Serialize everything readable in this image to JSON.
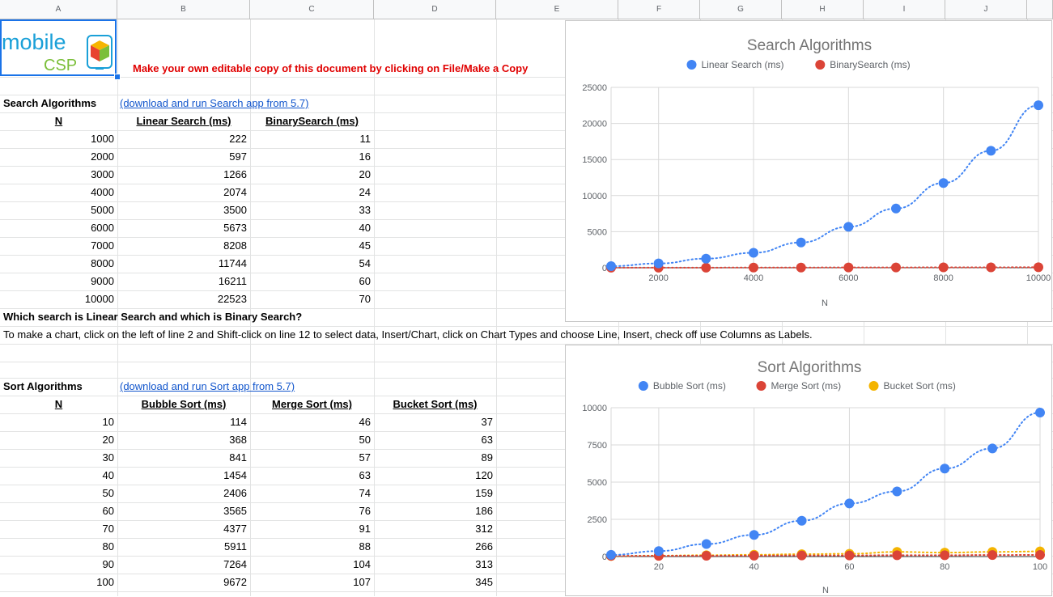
{
  "columns": [
    "A",
    "B",
    "C",
    "D",
    "E",
    "F",
    "G",
    "H",
    "I",
    "J"
  ],
  "logo": {
    "line1": "mobile",
    "line2": "CSP"
  },
  "notice": "Make your own editable copy of this document by clicking on File/Make a Copy",
  "search": {
    "title": "Search Algorithms",
    "link": "(download and run Search app from 5.7)",
    "headers": [
      "N",
      "Linear Search (ms)",
      "BinarySearch (ms)"
    ],
    "rows": [
      [
        "1000",
        "222",
        "11"
      ],
      [
        "2000",
        "597",
        "16"
      ],
      [
        "3000",
        "1266",
        "20"
      ],
      [
        "4000",
        "2074",
        "24"
      ],
      [
        "5000",
        "3500",
        "33"
      ],
      [
        "6000",
        "5673",
        "40"
      ],
      [
        "7000",
        "8208",
        "45"
      ],
      [
        "8000",
        "11744",
        "54"
      ],
      [
        "9000",
        "16211",
        "60"
      ],
      [
        "10000",
        "22523",
        "70"
      ]
    ],
    "question": "Which search is Linear Search and which is Binary Search?",
    "instructions": "To make a chart, click on the left of line 2 and Shift-click on line 12 to select data, Insert/Chart, click on Chart Types and choose Line, Insert, check off use Columns as Labels."
  },
  "sort": {
    "title": "Sort Algorithms",
    "link": "(download and run Sort app from 5.7)",
    "headers": [
      "N",
      "Bubble Sort (ms)",
      "Merge Sort (ms)",
      "Bucket Sort (ms)"
    ],
    "rows": [
      [
        "10",
        "114",
        "46",
        "37"
      ],
      [
        "20",
        "368",
        "50",
        "63"
      ],
      [
        "30",
        "841",
        "57",
        "89"
      ],
      [
        "40",
        "1454",
        "63",
        "120"
      ],
      [
        "50",
        "2406",
        "74",
        "159"
      ],
      [
        "60",
        "3565",
        "76",
        "186"
      ],
      [
        "70",
        "4377",
        "91",
        "312"
      ],
      [
        "80",
        "5911",
        "88",
        "266"
      ],
      [
        "90",
        "7264",
        "104",
        "313"
      ],
      [
        "100",
        "9672",
        "107",
        "345"
      ]
    ]
  },
  "chart_data": [
    {
      "type": "scatter",
      "title": "Search Algorithms",
      "xlabel": "N",
      "ylabel": "",
      "x": [
        1000,
        2000,
        3000,
        4000,
        5000,
        6000,
        7000,
        8000,
        9000,
        10000
      ],
      "xlim": [
        1000,
        10000
      ],
      "ylim": [
        0,
        25000
      ],
      "xticks": [
        2000,
        4000,
        6000,
        8000,
        10000
      ],
      "yticks": [
        0,
        5000,
        10000,
        15000,
        20000,
        25000
      ],
      "legend_position": "top",
      "grid": true,
      "series": [
        {
          "name": "Linear Search (ms)",
          "color": "#4285f4",
          "values": [
            222,
            597,
            1266,
            2074,
            3500,
            5673,
            8208,
            11744,
            16211,
            22523
          ]
        },
        {
          "name": "BinarySearch (ms)",
          "color": "#db4437",
          "values": [
            11,
            16,
            20,
            24,
            33,
            40,
            45,
            54,
            60,
            70
          ]
        }
      ]
    },
    {
      "type": "scatter",
      "title": "Sort Algorithms",
      "xlabel": "N",
      "ylabel": "",
      "x": [
        10,
        20,
        30,
        40,
        50,
        60,
        70,
        80,
        90,
        100
      ],
      "xlim": [
        10,
        100
      ],
      "ylim": [
        0,
        10000
      ],
      "xticks": [
        20,
        40,
        60,
        80,
        100
      ],
      "yticks": [
        0,
        2500,
        5000,
        7500,
        10000
      ],
      "legend_position": "top",
      "grid": true,
      "series": [
        {
          "name": "Bubble Sort (ms)",
          "color": "#4285f4",
          "values": [
            114,
            368,
            841,
            1454,
            2406,
            3565,
            4377,
            5911,
            7264,
            9672
          ]
        },
        {
          "name": "Merge Sort (ms)",
          "color": "#db4437",
          "values": [
            46,
            50,
            57,
            63,
            74,
            76,
            91,
            88,
            104,
            107
          ]
        },
        {
          "name": "Bucket Sort (ms)",
          "color": "#f4b400",
          "values": [
            37,
            63,
            89,
            120,
            159,
            186,
            312,
            266,
            313,
            345
          ]
        }
      ]
    }
  ]
}
